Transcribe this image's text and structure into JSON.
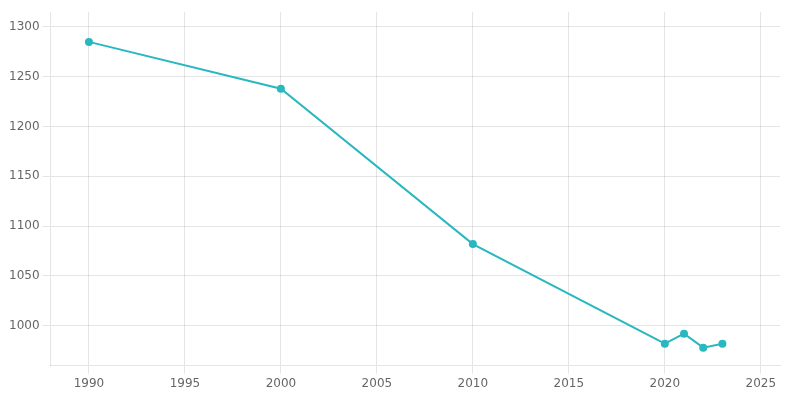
{
  "chart_data": {
    "type": "line",
    "x": [
      1990,
      2000,
      2010,
      2020,
      2021,
      2022,
      2023
    ],
    "values": [
      1285,
      1238,
      1082,
      982,
      992,
      978,
      982
    ],
    "color": "#29b8c0",
    "marker": "o",
    "xlim": [
      1988,
      2026
    ],
    "xticks": [
      1990,
      1995,
      2000,
      2005,
      2010,
      2015,
      2020,
      2025
    ],
    "ylim": [
      960,
      1315
    ],
    "yticks": [
      1000,
      1050,
      1100,
      1150,
      1200,
      1250,
      1300
    ],
    "grid": true
  }
}
